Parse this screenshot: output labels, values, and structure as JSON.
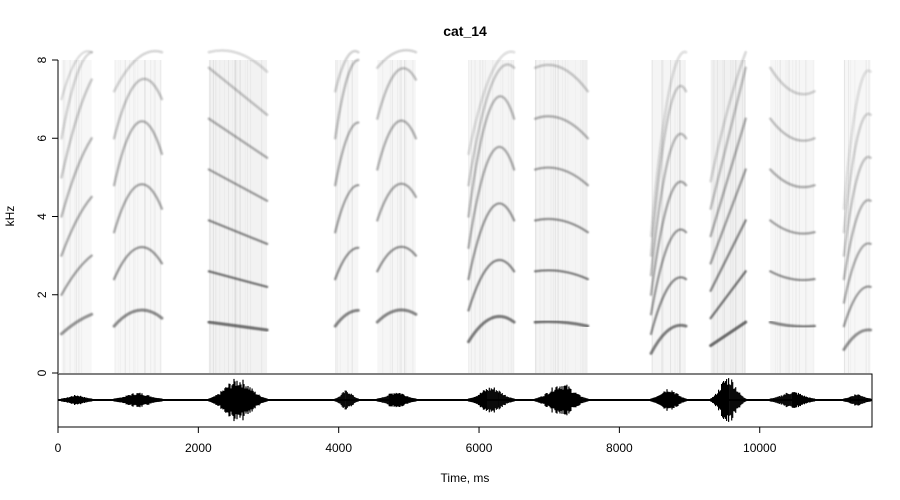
{
  "chart_data": {
    "type": "spectrogram",
    "title": "cat_14",
    "xlabel": "Time, ms",
    "ylabel": "kHz",
    "xlim": [
      0,
      11600
    ],
    "ylim": [
      0,
      8
    ],
    "x_ticks": [
      0,
      2000,
      4000,
      6000,
      8000,
      10000
    ],
    "y_ticks": [
      0,
      2,
      4,
      6,
      8
    ],
    "grid": false,
    "colors": {
      "ink": "#000000",
      "spectro_dark": "#2b2b2b",
      "spectro_light": "#d0d0d0"
    },
    "syllables": [
      {
        "start": 50,
        "end": 480,
        "f0_start": 1.0,
        "f0_mid": 1.3,
        "f0_end": 1.5,
        "amplitude": 0.15
      },
      {
        "start": 800,
        "end": 1480,
        "f0_start": 1.2,
        "f0_mid": 1.6,
        "f0_end": 1.4,
        "amplitude": 0.25
      },
      {
        "start": 2150,
        "end": 2980,
        "f0_start": 1.3,
        "f0_mid": 1.2,
        "f0_end": 1.1,
        "amplitude": 0.85
      },
      {
        "start": 3950,
        "end": 4280,
        "f0_start": 1.2,
        "f0_mid": 1.5,
        "f0_end": 1.6,
        "amplitude": 0.35
      },
      {
        "start": 4550,
        "end": 5100,
        "f0_start": 1.3,
        "f0_mid": 1.6,
        "f0_end": 1.5,
        "amplitude": 0.3
      },
      {
        "start": 5850,
        "end": 6500,
        "f0_start": 0.8,
        "f0_mid": 1.4,
        "f0_end": 1.3,
        "amplitude": 0.5
      },
      {
        "start": 6800,
        "end": 7550,
        "f0_start": 1.3,
        "f0_mid": 1.3,
        "f0_end": 1.2,
        "amplitude": 0.65
      },
      {
        "start": 8450,
        "end": 8950,
        "f0_start": 0.5,
        "f0_mid": 1.1,
        "f0_end": 1.2,
        "amplitude": 0.45
      },
      {
        "start": 9300,
        "end": 9800,
        "f0_start": 0.7,
        "f0_mid": 1.0,
        "f0_end": 1.3,
        "amplitude": 0.95
      },
      {
        "start": 10150,
        "end": 10780,
        "f0_start": 1.3,
        "f0_mid": 1.2,
        "f0_end": 1.2,
        "amplitude": 0.3
      },
      {
        "start": 11200,
        "end": 11580,
        "f0_start": 0.6,
        "f0_mid": 1.0,
        "f0_end": 1.1,
        "amplitude": 0.2
      }
    ]
  }
}
